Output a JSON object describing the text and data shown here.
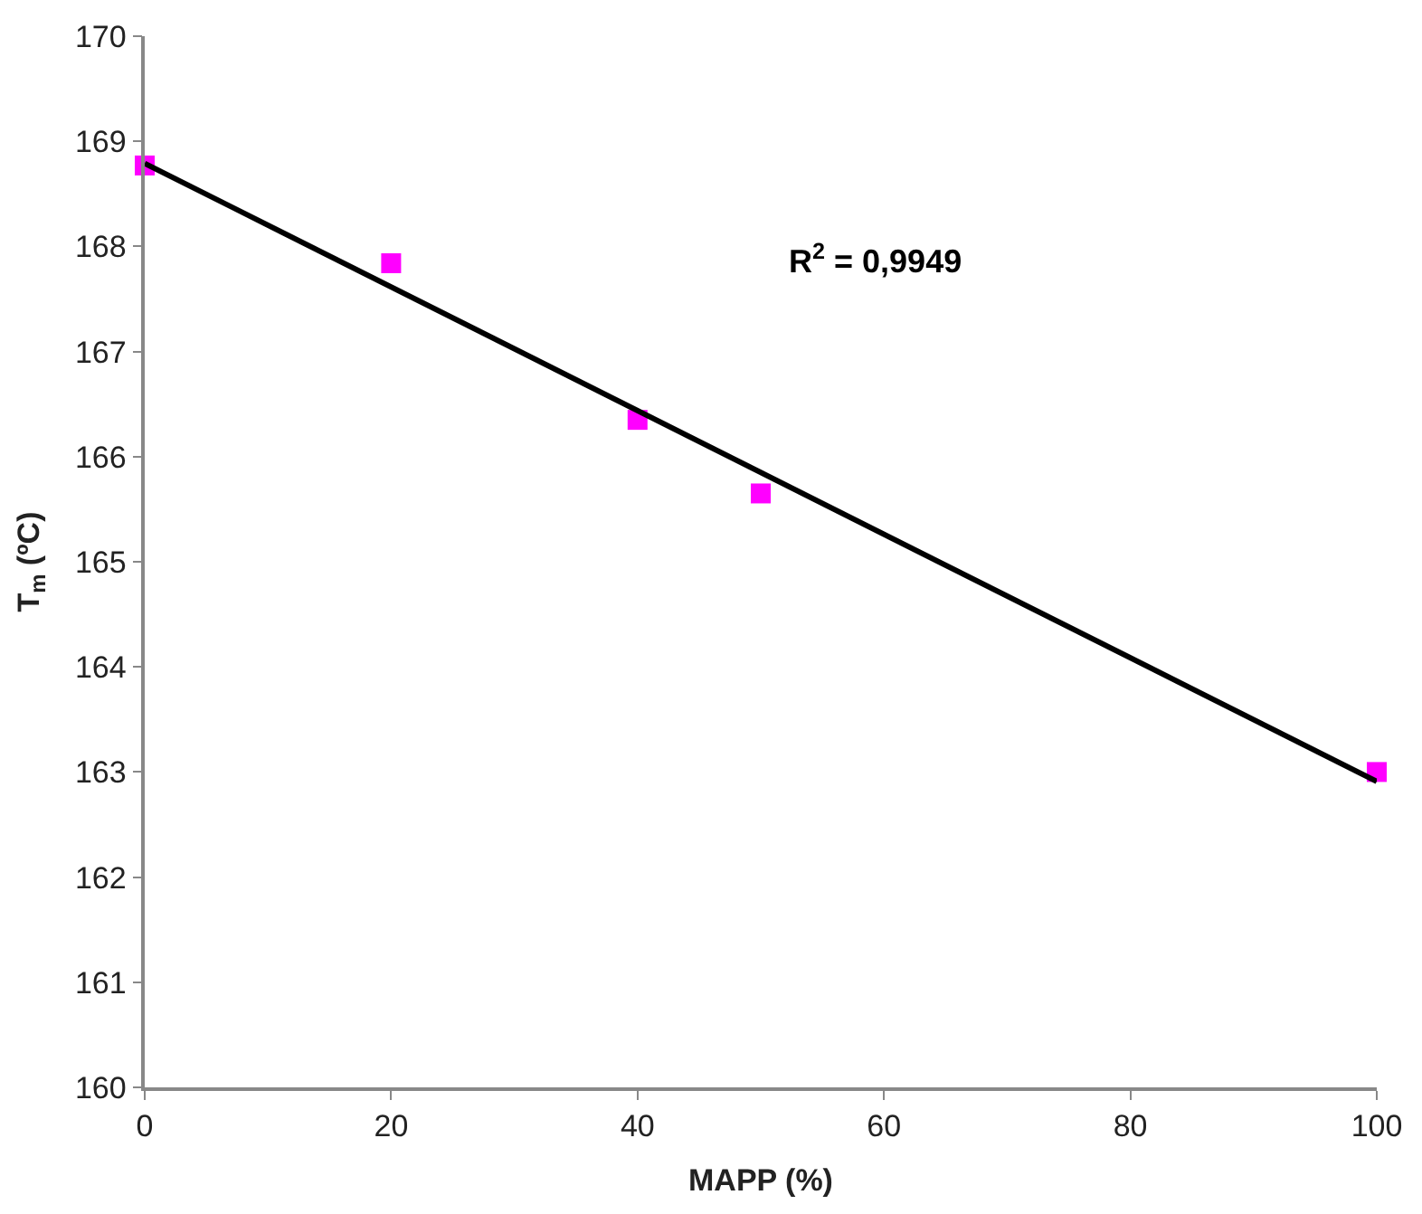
{
  "chart_data": {
    "type": "scatter",
    "xlabel": "MAPP (%)",
    "ylabel": "T$_{m}$ (ºC)",
    "x": [
      0,
      20,
      40,
      50,
      100
    ],
    "series": [
      {
        "color": "#ff00ff",
        "marker": "square",
        "values": [
          168.77,
          167.84,
          166.35,
          165.65,
          163.0
        ]
      },
      {
        "type": "line",
        "color": "#000000",
        "marker": "none",
        "line_style": "solid",
        "x": [
          0,
          100
        ],
        "values": [
          168.79,
          162.91
        ]
      }
    ],
    "xlim": [
      0,
      100
    ],
    "xticks": [
      0,
      20,
      40,
      60,
      80,
      100
    ],
    "ylim": [
      160,
      170
    ],
    "yticks": [
      160,
      161,
      162,
      163,
      164,
      165,
      166,
      167,
      168,
      169,
      170
    ],
    "annotations": [
      "R$^{2}$ = 0,9949"
    ]
  }
}
